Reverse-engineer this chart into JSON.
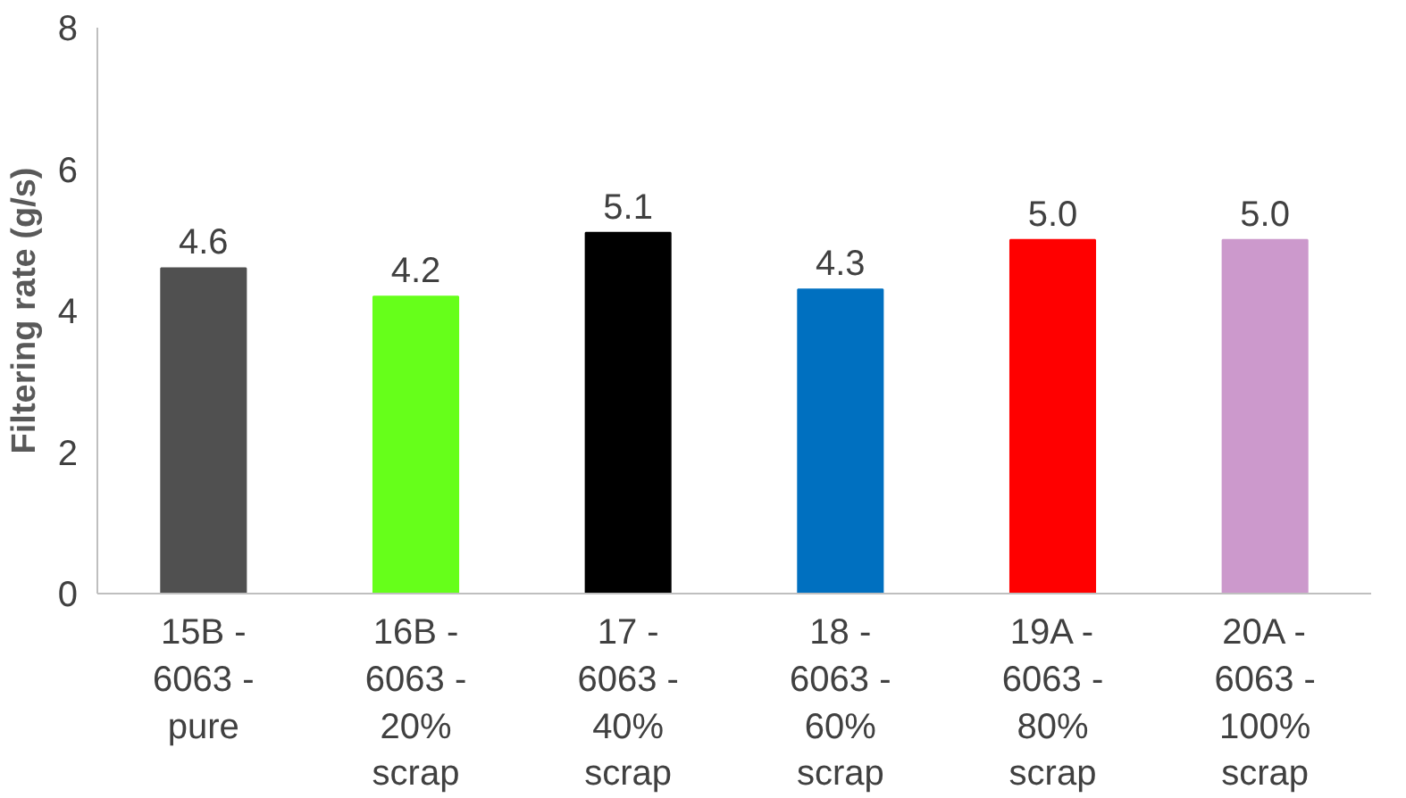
{
  "chart_data": {
    "type": "bar",
    "ylabel": "Filtering rate (g/s)",
    "categories": [
      "15B - 6063 - pure",
      "16B - 6063 - 20% scrap",
      "17 - 6063 - 40% scrap",
      "18 - 6063 - 60% scrap",
      "19A - 6063 - 80% scrap",
      "20A - 6063 - 100% scrap"
    ],
    "values": [
      4.6,
      4.2,
      5.1,
      4.3,
      5.0,
      5.0
    ],
    "colors": [
      "#505050",
      "#66ff1a",
      "#000000",
      "#0070c0",
      "#ff0000",
      "#cc99cc"
    ],
    "value_labels": [
      "4.6",
      "4.2",
      "5.1",
      "4.3",
      "5.0",
      "5.0"
    ],
    "ylim": [
      0,
      8
    ],
    "yticks": [
      0,
      2,
      4,
      6,
      8
    ],
    "grid": false
  }
}
